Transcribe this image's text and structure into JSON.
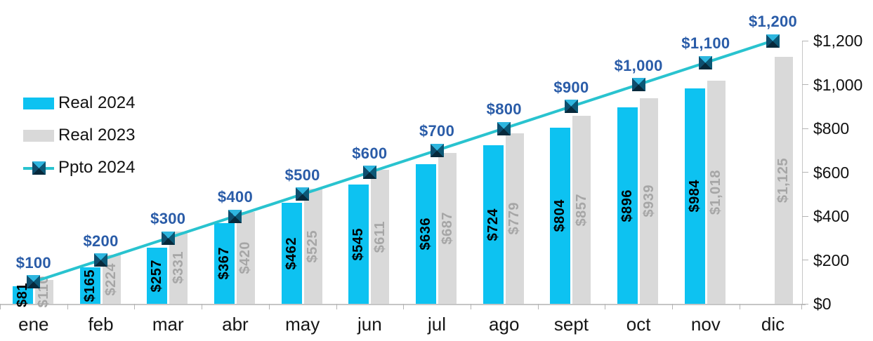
{
  "chart_data": {
    "type": "combo-bar-line",
    "title": "",
    "xlabel": "",
    "ylabel": "",
    "categories": [
      "ene",
      "feb",
      "mar",
      "abr",
      "may",
      "jun",
      "jul",
      "ago",
      "sept",
      "oct",
      "nov",
      "dic"
    ],
    "series": [
      {
        "name": "Real 2024",
        "type": "bar",
        "values": [
          81,
          165,
          257,
          367,
          462,
          545,
          636,
          724,
          804,
          896,
          984,
          null
        ],
        "labels": [
          "$81",
          "$165",
          "$257",
          "$367",
          "$462",
          "$545",
          "$636",
          "$724",
          "$804",
          "$896",
          "$984",
          null
        ]
      },
      {
        "name": "Real 2023",
        "type": "bar",
        "values": [
          110,
          224,
          331,
          420,
          525,
          611,
          687,
          779,
          857,
          939,
          1018,
          1125
        ],
        "labels": [
          "$110",
          "$224",
          "$331",
          "$420",
          "$525",
          "$611",
          "$687",
          "$779",
          "$857",
          "$939",
          "$1,018",
          "$1,125"
        ]
      },
      {
        "name": "Ppto 2024",
        "type": "line",
        "values": [
          100,
          200,
          300,
          400,
          500,
          600,
          700,
          800,
          900,
          1000,
          1100,
          1200
        ],
        "labels": [
          "$100",
          "$200",
          "$300",
          "$400",
          "$500",
          "$600",
          "$700",
          "$800",
          "$900",
          "$1,000",
          "$1,100",
          "$1,200"
        ]
      }
    ],
    "y_axis": {
      "side": "right",
      "min": 0,
      "max": 1200,
      "tick_values": [
        0,
        200,
        400,
        600,
        800,
        1000,
        1200
      ],
      "tick_labels": [
        "$0",
        "$200",
        "$400",
        "$600",
        "$800",
        "$1,000",
        "$1,200"
      ]
    },
    "legend_position": "left",
    "grid": "off",
    "colors": {
      "bar_2024": "#0dc2f1",
      "bar_2023": "#d9d9d9",
      "bar_2024_label": "#000000",
      "bar_2023_label": "#a6a6a6",
      "line": "#29c3cf",
      "line_label": "#2a5ca8",
      "marker_top": "#2eb6df",
      "marker_right": "#0c5876",
      "marker_bottom": "#07293b",
      "marker_left": "#0e4e6e"
    }
  }
}
